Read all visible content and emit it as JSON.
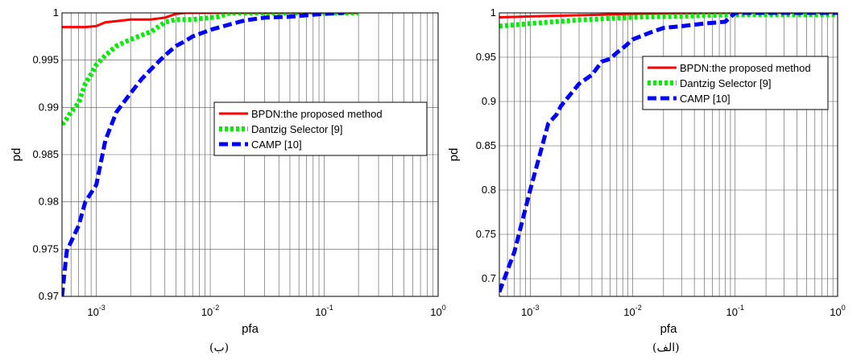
{
  "chart_data": [
    {
      "type": "line",
      "caption": "(ب)",
      "xlabel": "pfa",
      "ylabel": "pd",
      "xscale": "log",
      "xlim": [
        0.0005,
        1
      ],
      "ylim": [
        0.97,
        1
      ],
      "xticks": [
        {
          "base": "10",
          "exp": "-3",
          "value": 0.001
        },
        {
          "base": "10",
          "exp": "-2",
          "value": 0.01
        },
        {
          "base": "10",
          "exp": "-1",
          "value": 0.1
        },
        {
          "base": "10",
          "exp": "0",
          "value": 1
        }
      ],
      "yticks": [
        {
          "label": "0.97",
          "value": 0.97
        },
        {
          "label": "0.975",
          "value": 0.975
        },
        {
          "label": "0.98",
          "value": 0.98
        },
        {
          "label": "0.985",
          "value": 0.985
        },
        {
          "label": "0.99",
          "value": 0.99
        },
        {
          "label": "0.995",
          "value": 0.995
        },
        {
          "label": "1",
          "value": 1
        }
      ],
      "grid": true,
      "legend": "upper-right",
      "series": [
        {
          "name": "BPDN:the proposed method",
          "color": "#ff0000",
          "style": "solid",
          "x": [
            0.0005,
            0.0008,
            0.001,
            0.0012,
            0.002,
            0.003,
            0.004,
            0.005,
            0.006,
            0.2
          ],
          "y": [
            0.9985,
            0.9985,
            0.9986,
            0.999,
            0.9993,
            0.9993,
            0.9995,
            0.9999,
            1.0,
            1.0
          ]
        },
        {
          "name": "Dantzig Selector [9]",
          "color": "#00ee00",
          "style": "dotted",
          "x": [
            0.0005,
            0.00055,
            0.0006,
            0.0007,
            0.0008,
            0.0009,
            0.001,
            0.0012,
            0.0015,
            0.002,
            0.003,
            0.004,
            0.005,
            0.007,
            0.01,
            0.012,
            0.015,
            0.02,
            0.2
          ],
          "y": [
            0.9882,
            0.9888,
            0.9895,
            0.9905,
            0.9925,
            0.9935,
            0.9945,
            0.9955,
            0.9965,
            0.9972,
            0.998,
            0.999,
            0.9993,
            0.9993,
            0.9995,
            0.9996,
            1.0,
            1.0,
            1.0
          ]
        },
        {
          "name": "CAMP [10]",
          "color": "#0000ff",
          "style": "dashed",
          "x": [
            0.0005,
            0.00055,
            0.0007,
            0.0008,
            0.001,
            0.0012,
            0.0015,
            0.002,
            0.0025,
            0.003,
            0.004,
            0.005,
            0.006,
            0.007,
            0.01,
            0.015,
            0.02,
            0.03,
            0.05,
            0.08,
            0.1,
            0.15
          ],
          "y": [
            0.97,
            0.9748,
            0.9775,
            0.98,
            0.9818,
            0.9865,
            0.9895,
            0.9915,
            0.993,
            0.994,
            0.9955,
            0.9965,
            0.997,
            0.9975,
            0.9982,
            0.9988,
            0.9992,
            0.9995,
            0.9996,
            0.9998,
            0.9999,
            1.0
          ]
        }
      ]
    },
    {
      "type": "line",
      "caption": "(الف)",
      "xlabel": "pfa",
      "ylabel": "pd",
      "xscale": "log",
      "xlim": [
        0.0005,
        1
      ],
      "ylim": [
        0.68,
        1
      ],
      "xticks": [
        {
          "base": "10",
          "exp": "-3",
          "value": 0.001
        },
        {
          "base": "10",
          "exp": "-2",
          "value": 0.01
        },
        {
          "base": "10",
          "exp": "-1",
          "value": 0.1
        },
        {
          "base": "10",
          "exp": "0",
          "value": 1
        }
      ],
      "yticks": [
        {
          "label": "0.7",
          "value": 0.7
        },
        {
          "label": "0.75",
          "value": 0.75
        },
        {
          "label": "0.8",
          "value": 0.8
        },
        {
          "label": "0.85",
          "value": 0.85
        },
        {
          "label": "0.9",
          "value": 0.9
        },
        {
          "label": "0.95",
          "value": 0.95
        },
        {
          "label": "1",
          "value": 1
        }
      ],
      "grid": true,
      "legend": "upper-right",
      "series": [
        {
          "name": "BPDN:the proposed method",
          "color": "#ff0000",
          "style": "solid",
          "x": [
            0.0005,
            0.001,
            0.005,
            0.01,
            0.1,
            1
          ],
          "y": [
            0.995,
            0.996,
            0.998,
            0.999,
            1.0,
            1.0
          ]
        },
        {
          "name": "Dantzig Selector [9]",
          "color": "#00ee00",
          "style": "dotted",
          "x": [
            0.0005,
            0.001,
            0.003,
            0.01,
            0.05,
            0.1,
            1
          ],
          "y": [
            0.985,
            0.988,
            0.992,
            0.995,
            0.997,
            0.998,
            0.998
          ]
        },
        {
          "name": "CAMP [10]",
          "color": "#0000ff",
          "style": "dashed",
          "x": [
            0.0005,
            0.0007,
            0.001,
            0.0015,
            0.0018,
            0.002,
            0.003,
            0.004,
            0.005,
            0.006,
            0.007,
            0.008,
            0.01,
            0.015,
            0.02,
            0.03,
            0.05,
            0.08,
            0.1,
            0.2,
            0.5,
            1
          ],
          "y": [
            0.685,
            0.73,
            0.8,
            0.875,
            0.885,
            0.895,
            0.92,
            0.93,
            0.945,
            0.948,
            0.955,
            0.96,
            0.97,
            0.978,
            0.983,
            0.985,
            0.988,
            0.99,
            1.0,
            1.0,
            1.0,
            1.0
          ]
        }
      ]
    }
  ]
}
